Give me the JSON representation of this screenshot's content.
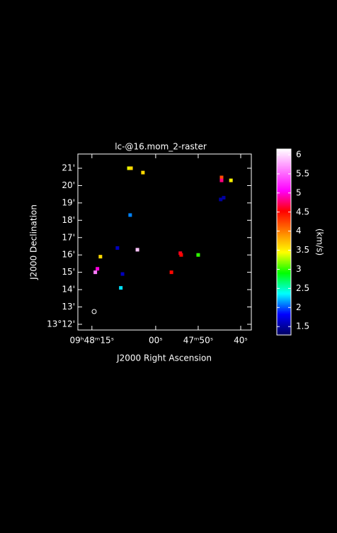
{
  "chart_data": {
    "type": "raster",
    "title": "lc-@16.mom_2-raster",
    "x_label": "J2000 Right Ascension",
    "y_label": "J2000 Declination",
    "xlim": [
      18.3,
      -22.5
    ],
    "ylim": [
      11.67,
      21.82
    ],
    "xticks": [
      {
        "value": 15,
        "label": "09ʰ48ᵐ15ˢ"
      },
      {
        "value": 0,
        "label": "00ˢ"
      },
      {
        "value": -10,
        "label": "47ᵐ50ˢ"
      },
      {
        "value": -20,
        "label": "40ˢ"
      }
    ],
    "yticks": [
      {
        "value": 21,
        "label": "21'"
      },
      {
        "value": 20,
        "label": "20'"
      },
      {
        "value": 19,
        "label": "19'"
      },
      {
        "value": 18,
        "label": "18'"
      },
      {
        "value": 17,
        "label": "17'"
      },
      {
        "value": 16,
        "label": "16'"
      },
      {
        "value": 15,
        "label": "15'"
      },
      {
        "value": 14,
        "label": "14'"
      },
      {
        "value": 13,
        "label": "13'"
      },
      {
        "value": 12,
        "label": "13°12'"
      }
    ],
    "x": [
      6.3,
      5.8,
      3.0,
      -15.5,
      -15.5,
      -17.7,
      -15.3,
      -16.0,
      6.0,
      9.0,
      4.3,
      13.0,
      -5.8,
      -6.0,
      -10.0,
      13.7,
      14.2,
      -3.7,
      7.8,
      8.2
    ],
    "y": [
      21.0,
      21.0,
      20.75,
      20.47,
      20.3,
      20.3,
      19.2,
      19.3,
      18.3,
      16.4,
      16.3,
      15.9,
      16.1,
      16.0,
      16.0,
      15.2,
      15.0,
      15.0,
      14.9,
      14.1
    ],
    "values": [
      3.4,
      3.6,
      3.6,
      4.2,
      4.8,
      3.5,
      1.5,
      1.5,
      2.1,
      1.6,
      5.9,
      3.6,
      4.6,
      4.5,
      3.0,
      5.0,
      5.6,
      4.5,
      1.6,
      2.3
    ],
    "colorbar_label": "(km/s)",
    "clim": [
      1.28,
      6.15
    ],
    "cticks": [
      {
        "value": 6,
        "label": "6"
      },
      5.5,
      5,
      4.5,
      4,
      3.5,
      3,
      2.5,
      2,
      1.5
    ],
    "colormap": [
      "#000060",
      "#0000ff",
      "#00ffff",
      "#00ff00",
      "#ffff00",
      "#ff8000",
      "#ff0000",
      "#ff00ff",
      "#ff80ff",
      "#ffffff"
    ]
  }
}
